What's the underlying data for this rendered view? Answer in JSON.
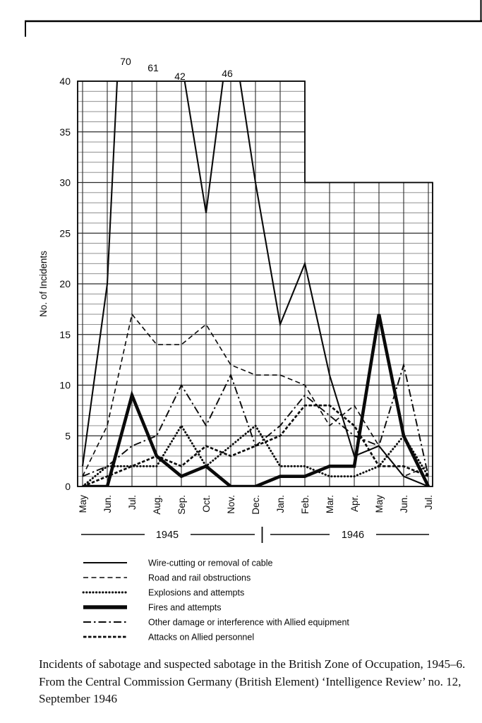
{
  "figure": {
    "ink_color": "#0a0a0a",
    "grid_minor_color": "#818181",
    "grid_major_color": "#2b2b2b"
  },
  "chart_data": {
    "type": "line",
    "title": "",
    "xlabel": "",
    "ylabel": "No. of Incidents",
    "grid": {
      "minor_step": 1,
      "major_step": 5,
      "tall_region_ymax": 40,
      "short_region_ymax": 30,
      "step_at_category_index": 9
    },
    "yticks": [
      0,
      5,
      10,
      15,
      20,
      25,
      30,
      35,
      40
    ],
    "x_categories": [
      "May",
      "Jun.",
      "Jul.",
      "Aug.",
      "Sep.",
      "Oct.",
      "Nov.",
      "Dec.",
      "Jan.",
      "Feb.",
      "Mar.",
      "Apr.",
      "May",
      "Jun.",
      "Jul."
    ],
    "year_groups": [
      {
        "label": "1945",
        "from_index": 0,
        "to_index": 7
      },
      {
        "label": "1946",
        "from_index": 8,
        "to_index": 14
      }
    ],
    "offchart_peak_labels": [
      {
        "text": "70",
        "category_index": 2
      },
      {
        "text": "61",
        "category_index": 3
      },
      {
        "text": "42",
        "category_index": 4
      },
      {
        "text": "46",
        "category_index": 6
      }
    ],
    "series": [
      {
        "name": "Wire-cutting or removal of cable",
        "style": "solid-thin",
        "values": [
          2,
          20,
          70,
          61,
          42,
          27,
          46,
          30,
          16,
          22,
          11,
          3,
          4,
          1,
          0
        ]
      },
      {
        "name": "Road and rail obstructions",
        "style": "dashed",
        "values": [
          1,
          6,
          17,
          14,
          14,
          16,
          12,
          11,
          11,
          10,
          6,
          8,
          4,
          1,
          2
        ]
      },
      {
        "name": "Explosions and attempts",
        "style": "dotted",
        "values": [
          0,
          2,
          2,
          2,
          6,
          2,
          4,
          6,
          2,
          2,
          1,
          1,
          2,
          5,
          1
        ]
      },
      {
        "name": "Fires and attempts",
        "style": "solid-thick",
        "values": [
          0,
          0,
          9,
          3,
          1,
          2,
          0,
          0,
          1,
          1,
          2,
          2,
          17,
          5,
          0
        ]
      },
      {
        "name": "Other damage or interference with Allied equipment",
        "style": "dashdot",
        "values": [
          1,
          2,
          4,
          5,
          10,
          6,
          11,
          4,
          6,
          9,
          7,
          5,
          4,
          12,
          1
        ]
      },
      {
        "name": "Attacks on Allied personnel",
        "style": "dense-dash",
        "values": [
          0,
          1,
          2,
          3,
          2,
          4,
          3,
          4,
          5,
          8,
          8,
          6,
          2,
          2,
          1
        ]
      }
    ]
  },
  "legend": {
    "items": [
      "Wire-cutting or removal of cable",
      "Road and rail obstructions",
      "Explosions and attempts",
      "Fires and attempts",
      "Other damage or interference with Allied equipment",
      "Attacks on Allied personnel"
    ]
  },
  "caption": {
    "text": "Incidents of sabotage and suspected sabotage in the British Zone of Occupation, 1945–6. From the Central Commission Germany (British Element) ‘Intelligence Review’ no. 12, September 1946"
  }
}
